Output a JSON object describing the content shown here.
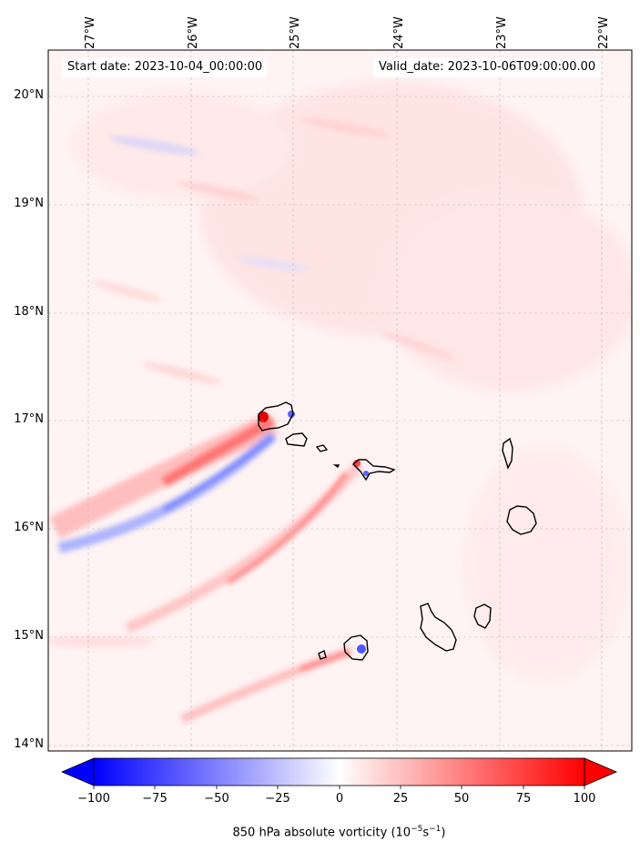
{
  "map": {
    "start_label": "Start date: 2023-10-04_00:00:00",
    "valid_label": "Valid_date: 2023-10-06T09:00:00.00",
    "lon_labels": [
      "27°W",
      "26°W",
      "25°W",
      "24°W",
      "23°W",
      "22°W"
    ],
    "lat_labels": [
      "20°N",
      "19°N",
      "18°N",
      "17°N",
      "16°N",
      "15°N",
      "14°N"
    ],
    "colormap": {
      "neg": "#0000ff",
      "mid": "#ffffff",
      "pos": "#ff0000"
    },
    "colorbar": {
      "ticks": [
        "−100",
        "−75",
        "−50",
        "−25",
        "0",
        "25",
        "50",
        "75",
        "100"
      ],
      "min": -100,
      "max": 100,
      "label_main": "850 hPa absolute vorticity (10",
      "label_exp1": "−5",
      "label_mid": "s",
      "label_exp2": "−1",
      "label_end": ")"
    }
  }
}
